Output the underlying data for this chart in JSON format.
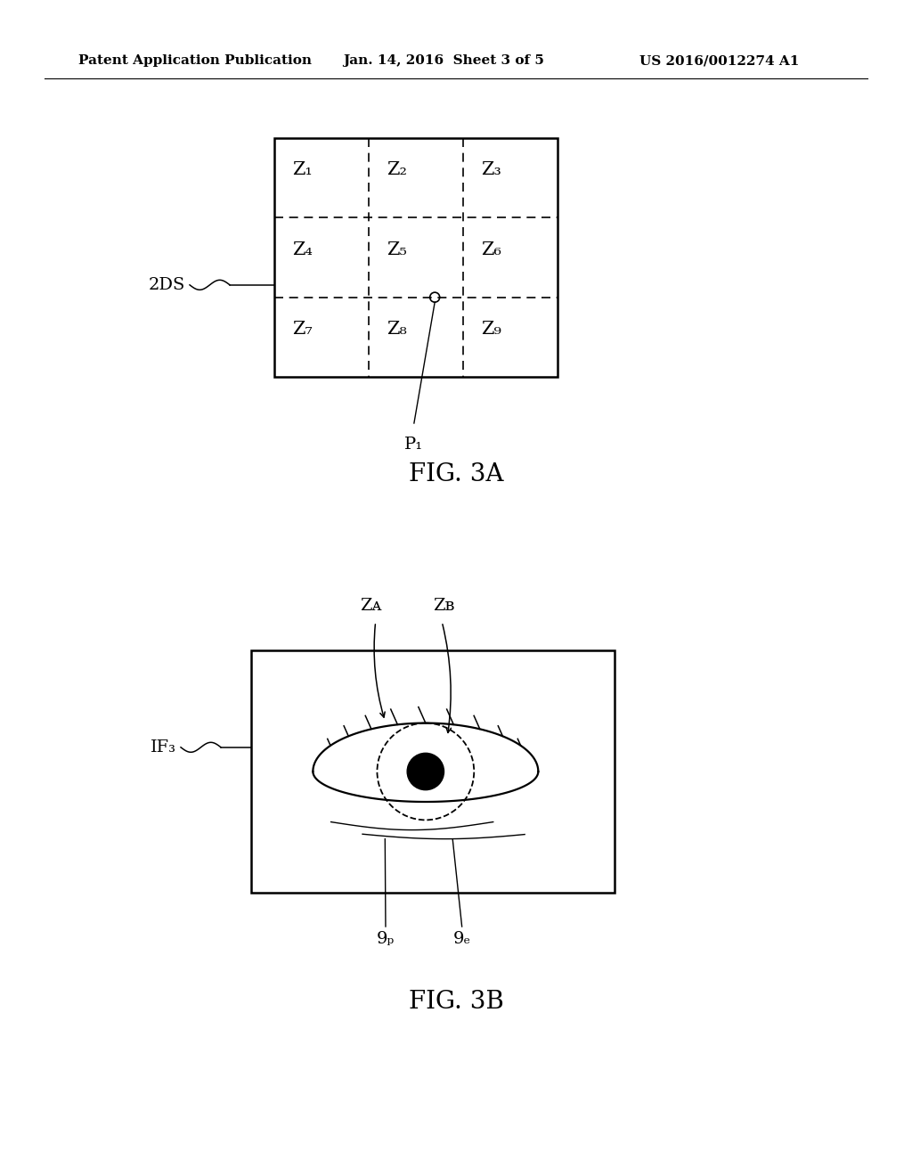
{
  "bg_color": "#ffffff",
  "header_left": "Patent Application Publication",
  "header_mid": "Jan. 14, 2016  Sheet 3 of 5",
  "header_right": "US 2016/0012274 A1",
  "fig3a_title": "FIG. 3A",
  "fig3b_title": "FIG. 3B",
  "zone_labels": [
    "Z₁",
    "Z₂",
    "Z₃",
    "Z₄",
    "Z₅",
    "Z₆",
    "Z₇",
    "Z₈",
    "Z₉"
  ],
  "label_2DS": "2DS",
  "label_P1": "P₁",
  "label_ZA": "Zᴀ",
  "label_ZB": "Zʙ",
  "label_IF3": "IF₃",
  "label_9p": "9ₚ",
  "label_9e": "9ₑ"
}
